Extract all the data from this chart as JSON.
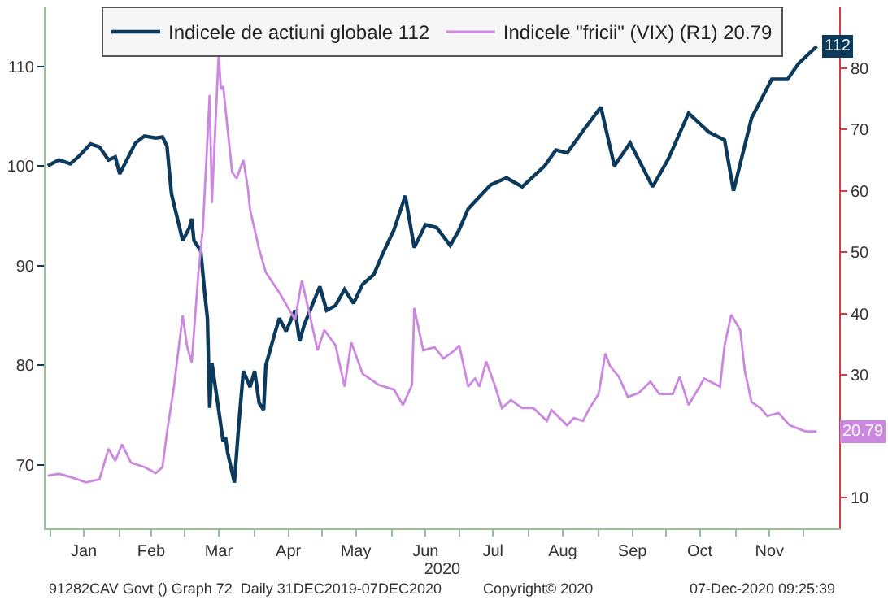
{
  "chart_data": {
    "type": "line",
    "xlabel": "2020",
    "xlim": [
      "2019-12-30",
      "2020-12-17"
    ],
    "xticks": [
      {
        "value": "2020-01-01",
        "label": null
      },
      {
        "value": "2020-01-16",
        "label": "Jan"
      },
      {
        "value": "2020-02-01",
        "label": null
      },
      {
        "value": "2020-02-15",
        "label": "Feb"
      },
      {
        "value": "2020-03-01",
        "label": null
      },
      {
        "value": "2020-03-16",
        "label": "Mar"
      },
      {
        "value": "2020-04-01",
        "label": null
      },
      {
        "value": "2020-04-16",
        "label": "Apr"
      },
      {
        "value": "2020-05-01",
        "label": null
      },
      {
        "value": "2020-05-16",
        "label": "May"
      },
      {
        "value": "2020-06-01",
        "label": null
      },
      {
        "value": "2020-06-16",
        "label": "Jun"
      },
      {
        "value": "2020-07-01",
        "label": null
      },
      {
        "value": "2020-07-16",
        "label": "Jul"
      },
      {
        "value": "2020-08-01",
        "label": null
      },
      {
        "value": "2020-08-16",
        "label": "Aug"
      },
      {
        "value": "2020-09-01",
        "label": null
      },
      {
        "value": "2020-09-16",
        "label": "Sep"
      },
      {
        "value": "2020-10-01",
        "label": null
      },
      {
        "value": "2020-10-16",
        "label": "Oct"
      },
      {
        "value": "2020-11-01",
        "label": null
      },
      {
        "value": "2020-11-16",
        "label": "Nov"
      },
      {
        "value": "2020-12-01",
        "label": null
      }
    ],
    "ylim": [
      63.6,
      116
    ],
    "yticks": [
      70,
      80,
      90,
      100,
      110
    ],
    "y2lim": [
      5,
      90
    ],
    "y2ticks": [
      10,
      {
        "value": 20,
        "label": null
      },
      30,
      40,
      50,
      60,
      70,
      80
    ],
    "legend": "top",
    "marker": "none",
    "line_style": "solid",
    "annotations": [
      "91282CAV Govt () Graph 72  Daily 31DEC2019-07DEC2020",
      "Copyright© 2020",
      "07-Dec-2020 09:25:39"
    ],
    "series": [
      {
        "name": "Indicele de actiuni globale 112",
        "color": "#0b3a5c",
        "axis": "y",
        "x": [
          "2019-12-31",
          "2020-01-05",
          "2020-01-10",
          "2020-01-14",
          "2020-01-19",
          "2020-01-23",
          "2020-01-27",
          "2020-01-30",
          "2020-02-01",
          "2020-02-08",
          "2020-02-12",
          "2020-02-17",
          "2020-02-20",
          "2020-02-22",
          "2020-02-24",
          "2020-02-29",
          "2020-03-03",
          "2020-03-04",
          "2020-03-05",
          "2020-03-08",
          "2020-03-10",
          "2020-03-11",
          "2020-03-12",
          "2020-03-13",
          "2020-03-16",
          "2020-03-17",
          "2020-03-18",
          "2020-03-19",
          "2020-03-20",
          "2020-03-23",
          "2020-03-25",
          "2020-03-27",
          "2020-03-30",
          "2020-04-01",
          "2020-04-03",
          "2020-04-05",
          "2020-04-06",
          "2020-04-10",
          "2020-04-12",
          "2020-04-15",
          "2020-04-19",
          "2020-04-21",
          "2020-04-23",
          "2020-04-28",
          "2020-04-30",
          "2020-05-03",
          "2020-05-07",
          "2020-05-11",
          "2020-05-15",
          "2020-05-19",
          "2020-05-24",
          "2020-05-28",
          "2020-06-02",
          "2020-06-07",
          "2020-06-11",
          "2020-06-16",
          "2020-06-21",
          "2020-06-27",
          "2020-07-01",
          "2020-07-05",
          "2020-07-15",
          "2020-07-22",
          "2020-07-29",
          "2020-08-08",
          "2020-08-13",
          "2020-08-18",
          "2020-08-26",
          "2020-09-02",
          "2020-09-08",
          "2020-09-15",
          "2020-09-25",
          "2020-10-02",
          "2020-10-11",
          "2020-10-20",
          "2020-10-27",
          "2020-10-31",
          "2020-11-08",
          "2020-11-17",
          "2020-11-24",
          "2020-11-29",
          "2020-12-07"
        ],
        "values": [
          100.0,
          100.6,
          100.2,
          101.0,
          102.2,
          101.9,
          100.6,
          100.9,
          99.2,
          102.3,
          103.0,
          102.8,
          102.9,
          102.0,
          97.2,
          92.5,
          93.8,
          94.7,
          92.5,
          91.5,
          86.8,
          84.7,
          75.7,
          80.2,
          75.5,
          73.9,
          72.3,
          72.8,
          71.2,
          68.2,
          74.2,
          79.4,
          77.8,
          79.4,
          76.2,
          75.5,
          80.0,
          83.2,
          84.7,
          83.4,
          85.5,
          82.4,
          84.0,
          86.8,
          87.9,
          85.5,
          86.0,
          87.6,
          86.2,
          88.1,
          89.1,
          91.2,
          93.6,
          97.0,
          91.8,
          94.1,
          93.8,
          92.0,
          93.6,
          95.7,
          98.1,
          98.8,
          97.9,
          100.0,
          101.6,
          101.3,
          103.8,
          105.9,
          100.0,
          102.3,
          97.9,
          100.7,
          105.3,
          103.4,
          102.6,
          97.5,
          104.8,
          108.7,
          108.7,
          110.3,
          112
        ],
        "value_labels": [
          null,
          null,
          null,
          null,
          null,
          null,
          null,
          null,
          null,
          null,
          null,
          null,
          null,
          null,
          null,
          null,
          null,
          null,
          null,
          null,
          null,
          null,
          null,
          null,
          null,
          null,
          null,
          null,
          null,
          null,
          null,
          null,
          null,
          null,
          null,
          null,
          null,
          null,
          null,
          null,
          null,
          null,
          null,
          null,
          null,
          null,
          null,
          null,
          null,
          null,
          null,
          null,
          null,
          null,
          null,
          null,
          null,
          null,
          null,
          null,
          null,
          null,
          null,
          null,
          null,
          null,
          null,
          null,
          null,
          null,
          null,
          null,
          null,
          null,
          null,
          null,
          null,
          null,
          null,
          null,
          "112"
        ]
      },
      {
        "name": "Indicele \"fricii\" (VIX) (R1) 20.79",
        "color": "#cc88e0",
        "axis": "y2",
        "x": [
          "2019-12-31",
          "2020-01-05",
          "2020-01-10",
          "2020-01-17",
          "2020-01-23",
          "2020-01-27",
          "2020-01-30",
          "2020-02-02",
          "2020-02-06",
          "2020-02-12",
          "2020-02-17",
          "2020-02-20",
          "2020-02-22",
          "2020-02-25",
          "2020-02-29",
          "2020-03-02",
          "2020-03-04",
          "2020-03-07",
          "2020-03-09",
          "2020-03-12",
          "2020-03-13",
          "2020-03-16",
          "2020-03-17",
          "2020-03-18",
          "2020-03-22",
          "2020-03-24",
          "2020-03-27",
          "2020-03-29",
          "2020-03-30",
          "2020-04-03",
          "2020-04-06",
          "2020-04-12",
          "2020-04-19",
          "2020-04-22",
          "2020-04-26",
          "2020-04-29",
          "2020-05-02",
          "2020-05-07",
          "2020-05-11",
          "2020-05-14",
          "2020-05-19",
          "2020-05-26",
          "2020-06-02",
          "2020-06-06",
          "2020-06-10",
          "2020-06-11",
          "2020-06-15",
          "2020-06-20",
          "2020-06-24",
          "2020-06-29",
          "2020-07-01",
          "2020-07-05",
          "2020-07-08",
          "2020-07-10",
          "2020-07-13",
          "2020-07-17",
          "2020-07-20",
          "2020-07-24",
          "2020-07-29",
          "2020-08-03",
          "2020-08-09",
          "2020-08-11",
          "2020-08-18",
          "2020-08-21",
          "2020-08-25",
          "2020-08-28",
          "2020-09-01",
          "2020-09-04",
          "2020-09-06",
          "2020-09-10",
          "2020-09-14",
          "2020-09-19",
          "2020-09-24",
          "2020-09-28",
          "2020-10-04",
          "2020-10-07",
          "2020-10-11",
          "2020-10-18",
          "2020-10-25",
          "2020-10-27",
          "2020-10-30",
          "2020-11-03",
          "2020-11-05",
          "2020-11-08",
          "2020-11-12",
          "2020-11-15",
          "2020-11-20",
          "2020-11-25",
          "2020-12-02",
          "2020-12-07"
        ],
        "values": [
          13.6,
          13.9,
          13.4,
          12.5,
          13.0,
          18.0,
          16.0,
          18.7,
          15.7,
          15.0,
          14.0,
          15.0,
          20.6,
          27.8,
          39.7,
          34.6,
          32.0,
          46.7,
          54.0,
          75.6,
          58.0,
          82.3,
          76.5,
          77.0,
          63.0,
          62.0,
          65.0,
          60.4,
          56.9,
          50.5,
          46.7,
          43.4,
          39.0,
          45.4,
          39.0,
          34.0,
          37.3,
          34.8,
          28.1,
          35.3,
          30.2,
          28.4,
          27.6,
          25.1,
          28.4,
          40.9,
          34.0,
          34.5,
          32.7,
          34.0,
          34.8,
          28.1,
          29.4,
          28.1,
          32.2,
          28.1,
          24.6,
          25.9,
          24.6,
          24.6,
          22.5,
          24.3,
          21.8,
          23.0,
          22.5,
          24.6,
          26.9,
          33.5,
          31.5,
          29.7,
          26.4,
          27.1,
          28.9,
          26.9,
          26.9,
          29.7,
          25.1,
          29.4,
          28.1,
          34.8,
          39.8,
          37.3,
          30.7,
          25.6,
          24.6,
          23.3,
          23.8,
          21.8,
          20.8,
          20.79
        ],
        "value_labels": [
          null,
          null,
          null,
          null,
          null,
          null,
          null,
          null,
          null,
          null,
          null,
          null,
          null,
          null,
          null,
          null,
          null,
          null,
          null,
          null,
          null,
          null,
          null,
          null,
          null,
          null,
          null,
          null,
          null,
          null,
          null,
          null,
          null,
          null,
          null,
          null,
          null,
          null,
          null,
          null,
          null,
          null,
          null,
          null,
          null,
          null,
          null,
          null,
          null,
          null,
          null,
          null,
          null,
          null,
          null,
          null,
          null,
          null,
          null,
          null,
          null,
          null,
          null,
          null,
          null,
          null,
          null,
          null,
          null,
          null,
          null,
          null,
          null,
          null,
          null,
          null,
          null,
          null,
          null,
          null,
          null,
          null,
          null,
          null,
          null,
          null,
          null,
          null,
          null,
          "20.79"
        ]
      }
    ]
  }
}
